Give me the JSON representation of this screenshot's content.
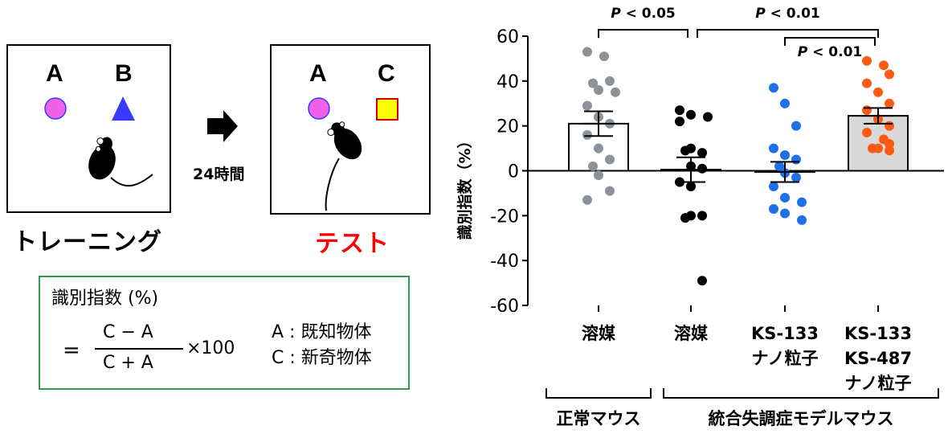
{
  "diagram": {
    "training": {
      "objects": [
        "A",
        "B"
      ],
      "label": "トレーニング"
    },
    "test": {
      "objects": [
        "A",
        "C"
      ],
      "label": "テスト"
    },
    "interval": "24時間",
    "colors": {
      "circle": "#f060e8",
      "triangle": "#3a3aff",
      "square_fill": "#ffff00",
      "square_border": "#cc0000",
      "test_label": "#ff0000"
    }
  },
  "formula": {
    "title": "識別指数 (%)",
    "equals": "=",
    "numerator": "C − A",
    "denominator": "C + A",
    "multiplier": "×100",
    "legend_a": "A : 既知物体",
    "legend_c": "C : 新奇物体",
    "border_color": "#2e9b4f"
  },
  "chart_data": {
    "type": "bar",
    "ylabel": "識別指数（%）",
    "ylim": [
      -60,
      60
    ],
    "yticks": [
      "60",
      "40",
      "20",
      "0",
      "-20",
      "-40",
      "-60"
    ],
    "categories": [
      {
        "lines": [
          "溶媒"
        ]
      },
      {
        "lines": [
          "溶媒"
        ]
      },
      {
        "lines": [
          "KS-133",
          "ナノ粒子"
        ]
      },
      {
        "lines": [
          "KS-133",
          "KS-487",
          "ナノ粒子"
        ]
      }
    ],
    "values": [
      21,
      0.5,
      -0.5,
      24.5
    ],
    "sem": [
      5.5,
      5.5,
      4.5,
      3.5
    ],
    "bar_colors": [
      "#ffffff",
      "#ffffff",
      "#ffffff",
      "#d9d9d9"
    ],
    "point_colors": [
      "#8c9299",
      "#000000",
      "#1f6fe8",
      "#ff5a14"
    ],
    "points": [
      [
        53,
        51,
        40,
        39,
        36,
        35,
        29,
        24,
        21,
        16,
        10,
        5,
        2,
        -2,
        -9,
        -13
      ],
      [
        27,
        25,
        24,
        22,
        10,
        8,
        9,
        2,
        1,
        -5,
        -7,
        -20,
        -21,
        -20,
        -49
      ],
      [
        37,
        30,
        20,
        10,
        7,
        5,
        2,
        -1,
        -3,
        -7,
        -12,
        -14,
        -17,
        -19,
        -22
      ],
      [
        49,
        47,
        43,
        39,
        35,
        30,
        27,
        23,
        20,
        17,
        14,
        12,
        10,
        10,
        9
      ]
    ],
    "significance": [
      {
        "label": "P < 0.05",
        "from": 0,
        "to": 1
      },
      {
        "label": "P < 0.01",
        "from": 1,
        "to": 3
      },
      {
        "label": "P < 0.01",
        "from": 2,
        "to": 3
      }
    ],
    "groups": [
      {
        "label": "正常マウス",
        "from": 0,
        "to": 0
      },
      {
        "label": "統合失調症モデルマウス",
        "from": 1,
        "to": 3
      }
    ]
  }
}
